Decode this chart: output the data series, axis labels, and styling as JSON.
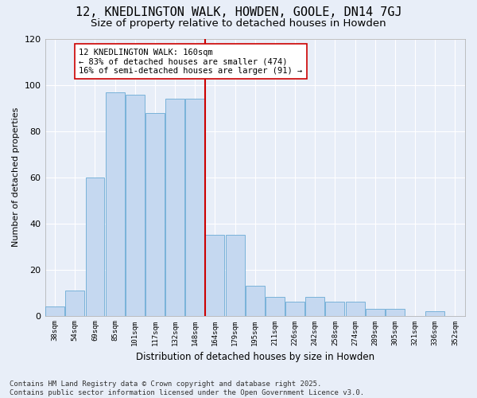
{
  "title": "12, KNEDLINGTON WALK, HOWDEN, GOOLE, DN14 7GJ",
  "subtitle": "Size of property relative to detached houses in Howden",
  "xlabel": "Distribution of detached houses by size in Howden",
  "ylabel": "Number of detached properties",
  "bar_labels": [
    "38sqm",
    "54sqm",
    "69sqm",
    "85sqm",
    "101sqm",
    "117sqm",
    "132sqm",
    "148sqm",
    "164sqm",
    "179sqm",
    "195sqm",
    "211sqm",
    "226sqm",
    "242sqm",
    "258sqm",
    "274sqm",
    "289sqm",
    "305sqm",
    "321sqm",
    "336sqm",
    "352sqm"
  ],
  "bar_values": [
    4,
    11,
    60,
    97,
    96,
    88,
    94,
    94,
    35,
    35,
    13,
    8,
    6,
    8,
    6,
    6,
    3,
    3,
    0,
    2,
    0
  ],
  "bar_color": "#C5D8F0",
  "bar_edge_color": "#6AAAD4",
  "background_color": "#E8EEF8",
  "grid_color": "#FFFFFF",
  "property_line_color": "#CC0000",
  "annotation_text": "12 KNEDLINGTON WALK: 160sqm\n← 83% of detached houses are smaller (474)\n16% of semi-detached houses are larger (91) →",
  "annotation_box_color": "#FFFFFF",
  "annotation_box_edge_color": "#CC0000",
  "ylim": [
    0,
    120
  ],
  "yticks": [
    0,
    20,
    40,
    60,
    80,
    100,
    120
  ],
  "footer_text": "Contains HM Land Registry data © Crown copyright and database right 2025.\nContains public sector information licensed under the Open Government Licence v3.0.",
  "title_fontsize": 11,
  "subtitle_fontsize": 9.5,
  "annotation_fontsize": 7.5,
  "footer_fontsize": 6.5,
  "ylabel_fontsize": 8,
  "xlabel_fontsize": 8.5,
  "ytick_fontsize": 8,
  "xtick_fontsize": 6.5
}
